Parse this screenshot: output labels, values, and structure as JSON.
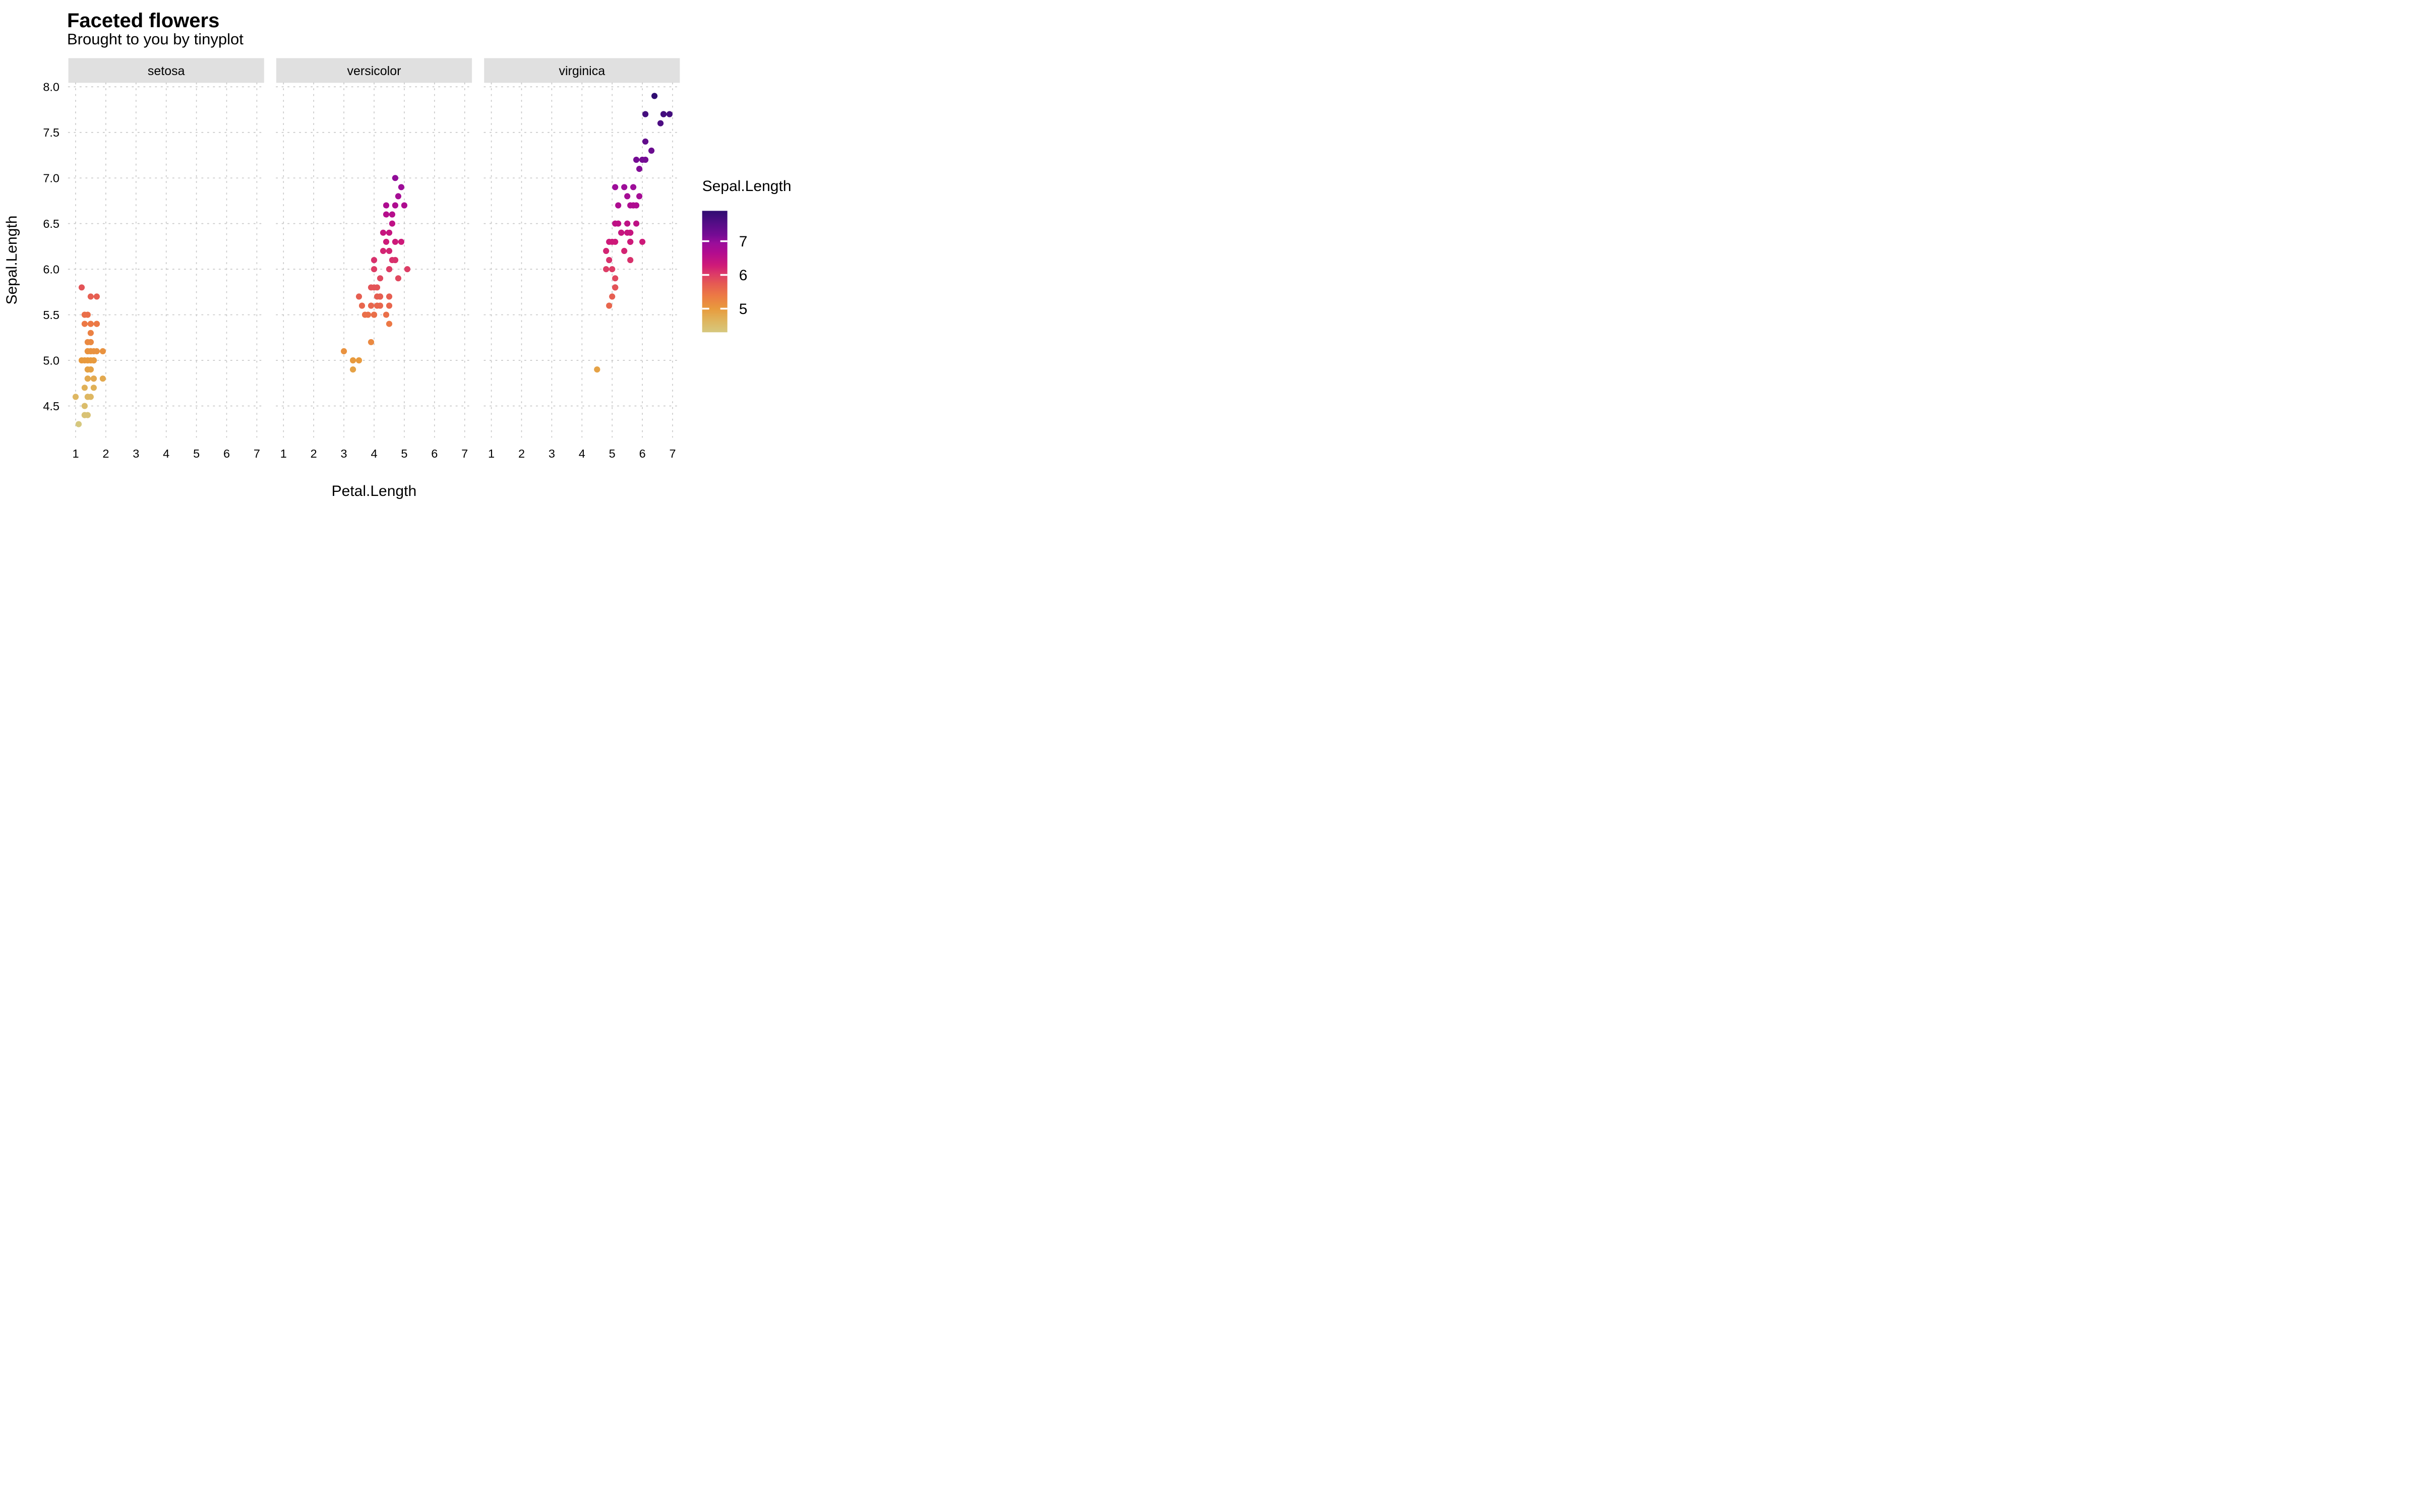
{
  "page": {
    "background": "#ffffff"
  },
  "chart_data": {
    "type": "scatter",
    "title": "Faceted flowers",
    "subtitle": "Brought to you by tinyplot",
    "xlabel": "Petal.Length",
    "ylabel": "Sepal.Length",
    "facets": [
      "setosa",
      "versicolor",
      "virginica"
    ],
    "x_ticks": [
      1,
      2,
      3,
      4,
      5,
      6,
      7
    ],
    "y_ticks": [
      4.5,
      5.0,
      5.5,
      6.0,
      6.5,
      7.0,
      7.5,
      8.0
    ],
    "xlim": [
      0.76,
      7.24
    ],
    "ylim": [
      4.156,
      8.044
    ],
    "grid": true,
    "legend": {
      "title": "Sepal.Length",
      "position": "right",
      "ticks": [
        7,
        6,
        5
      ],
      "domain": [
        4.3,
        7.9
      ]
    },
    "color_variable": "Sepal.Length",
    "gradient_stops": [
      [
        4.3,
        "#d6c87e"
      ],
      [
        4.66,
        "#dfb45c"
      ],
      [
        5.0,
        "#e89a3d"
      ],
      [
        5.38,
        "#ec7a44"
      ],
      [
        5.74,
        "#e55a53"
      ],
      [
        6.03,
        "#dc3a68"
      ],
      [
        6.28,
        "#cf1a78"
      ],
      [
        6.64,
        "#b30c8e"
      ],
      [
        6.93,
        "#9b0d9a"
      ],
      [
        7.18,
        "#760b94"
      ],
      [
        7.54,
        "#530d86"
      ],
      [
        7.9,
        "#2f0d71"
      ]
    ],
    "style": {
      "grid_color": "#c8c8c8",
      "strip_bg": "#e0e0e0",
      "text_color": "#000000",
      "legend_tick_color": "#ffffff",
      "point_radius": 6.1
    },
    "series": [
      {
        "name": "setosa",
        "points": [
          [
            1.4,
            5.1
          ],
          [
            1.4,
            4.9
          ],
          [
            1.3,
            4.7
          ],
          [
            1.5,
            4.6
          ],
          [
            1.4,
            5.0
          ],
          [
            1.7,
            5.4
          ],
          [
            1.4,
            4.6
          ],
          [
            1.5,
            5.0
          ],
          [
            1.4,
            4.4
          ],
          [
            1.5,
            4.9
          ],
          [
            1.5,
            5.4
          ],
          [
            1.6,
            4.8
          ],
          [
            1.4,
            4.8
          ],
          [
            1.1,
            4.3
          ],
          [
            1.2,
            5.8
          ],
          [
            1.5,
            5.7
          ],
          [
            1.3,
            5.4
          ],
          [
            1.4,
            5.1
          ],
          [
            1.7,
            5.7
          ],
          [
            1.5,
            5.1
          ],
          [
            1.7,
            5.4
          ],
          [
            1.5,
            5.1
          ],
          [
            1.0,
            4.6
          ],
          [
            1.7,
            5.1
          ],
          [
            1.9,
            4.8
          ],
          [
            1.6,
            5.0
          ],
          [
            1.6,
            5.0
          ],
          [
            1.5,
            5.2
          ],
          [
            1.4,
            5.2
          ],
          [
            1.6,
            4.7
          ],
          [
            1.6,
            4.8
          ],
          [
            1.5,
            5.4
          ],
          [
            1.5,
            5.2
          ],
          [
            1.4,
            5.5
          ],
          [
            1.5,
            4.9
          ],
          [
            1.2,
            5.0
          ],
          [
            1.3,
            5.5
          ],
          [
            1.4,
            4.9
          ],
          [
            1.3,
            4.4
          ],
          [
            1.5,
            5.1
          ],
          [
            1.3,
            5.0
          ],
          [
            1.3,
            4.5
          ],
          [
            1.3,
            4.4
          ],
          [
            1.6,
            5.0
          ],
          [
            1.9,
            5.1
          ],
          [
            1.4,
            4.8
          ],
          [
            1.6,
            5.1
          ],
          [
            1.4,
            4.6
          ],
          [
            1.5,
            5.3
          ],
          [
            1.4,
            5.0
          ]
        ]
      },
      {
        "name": "versicolor",
        "points": [
          [
            4.7,
            7.0
          ],
          [
            4.5,
            6.4
          ],
          [
            4.9,
            6.9
          ],
          [
            4.0,
            5.5
          ],
          [
            4.6,
            6.5
          ],
          [
            4.5,
            5.7
          ],
          [
            4.7,
            6.3
          ],
          [
            3.3,
            4.9
          ],
          [
            4.6,
            6.6
          ],
          [
            3.9,
            5.2
          ],
          [
            3.5,
            5.0
          ],
          [
            4.2,
            5.9
          ],
          [
            4.0,
            6.0
          ],
          [
            4.7,
            6.1
          ],
          [
            3.6,
            5.6
          ],
          [
            4.4,
            6.7
          ],
          [
            4.5,
            5.6
          ],
          [
            4.1,
            5.8
          ],
          [
            4.5,
            6.2
          ],
          [
            3.9,
            5.6
          ],
          [
            4.8,
            5.9
          ],
          [
            4.0,
            6.1
          ],
          [
            4.9,
            6.3
          ],
          [
            4.7,
            6.1
          ],
          [
            4.3,
            6.4
          ],
          [
            4.4,
            6.6
          ],
          [
            4.8,
            6.8
          ],
          [
            5.0,
            6.7
          ],
          [
            4.5,
            6.0
          ],
          [
            3.5,
            5.7
          ],
          [
            3.8,
            5.5
          ],
          [
            3.7,
            5.5
          ],
          [
            3.9,
            5.8
          ],
          [
            5.1,
            6.0
          ],
          [
            4.5,
            5.4
          ],
          [
            4.5,
            6.0
          ],
          [
            4.7,
            6.7
          ],
          [
            4.4,
            6.3
          ],
          [
            4.1,
            5.6
          ],
          [
            4.0,
            5.5
          ],
          [
            4.4,
            5.5
          ],
          [
            4.6,
            6.1
          ],
          [
            4.0,
            5.8
          ],
          [
            3.3,
            5.0
          ],
          [
            4.2,
            5.6
          ],
          [
            4.2,
            5.7
          ],
          [
            4.2,
            5.7
          ],
          [
            4.3,
            6.2
          ],
          [
            3.0,
            5.1
          ],
          [
            4.1,
            5.7
          ]
        ]
      },
      {
        "name": "virginica",
        "points": [
          [
            6.0,
            6.3
          ],
          [
            5.1,
            5.8
          ],
          [
            5.9,
            7.1
          ],
          [
            5.6,
            6.3
          ],
          [
            5.8,
            6.5
          ],
          [
            6.6,
            7.6
          ],
          [
            4.5,
            4.9
          ],
          [
            6.3,
            7.3
          ],
          [
            5.8,
            6.7
          ],
          [
            6.1,
            7.2
          ],
          [
            5.1,
            6.5
          ],
          [
            5.3,
            6.4
          ],
          [
            5.5,
            6.8
          ],
          [
            5.0,
            5.7
          ],
          [
            5.1,
            5.8
          ],
          [
            5.3,
            6.4
          ],
          [
            5.5,
            6.5
          ],
          [
            6.7,
            7.7
          ],
          [
            6.9,
            7.7
          ],
          [
            5.0,
            6.0
          ],
          [
            5.7,
            6.9
          ],
          [
            4.9,
            5.6
          ],
          [
            6.7,
            7.7
          ],
          [
            4.9,
            6.3
          ],
          [
            5.7,
            6.7
          ],
          [
            6.0,
            7.2
          ],
          [
            4.8,
            6.2
          ],
          [
            4.9,
            6.1
          ],
          [
            5.6,
            6.4
          ],
          [
            5.8,
            7.2
          ],
          [
            6.1,
            7.4
          ],
          [
            6.4,
            7.9
          ],
          [
            5.6,
            6.4
          ],
          [
            5.1,
            6.3
          ],
          [
            5.6,
            6.1
          ],
          [
            6.1,
            7.7
          ],
          [
            5.6,
            6.3
          ],
          [
            5.5,
            6.4
          ],
          [
            4.8,
            6.0
          ],
          [
            5.4,
            6.9
          ],
          [
            5.6,
            6.7
          ],
          [
            5.1,
            6.9
          ],
          [
            5.1,
            5.8
          ],
          [
            5.9,
            6.8
          ],
          [
            5.7,
            6.7
          ],
          [
            5.2,
            6.7
          ],
          [
            5.0,
            6.3
          ],
          [
            5.2,
            6.5
          ],
          [
            5.4,
            6.2
          ],
          [
            5.1,
            5.9
          ]
        ]
      }
    ]
  }
}
